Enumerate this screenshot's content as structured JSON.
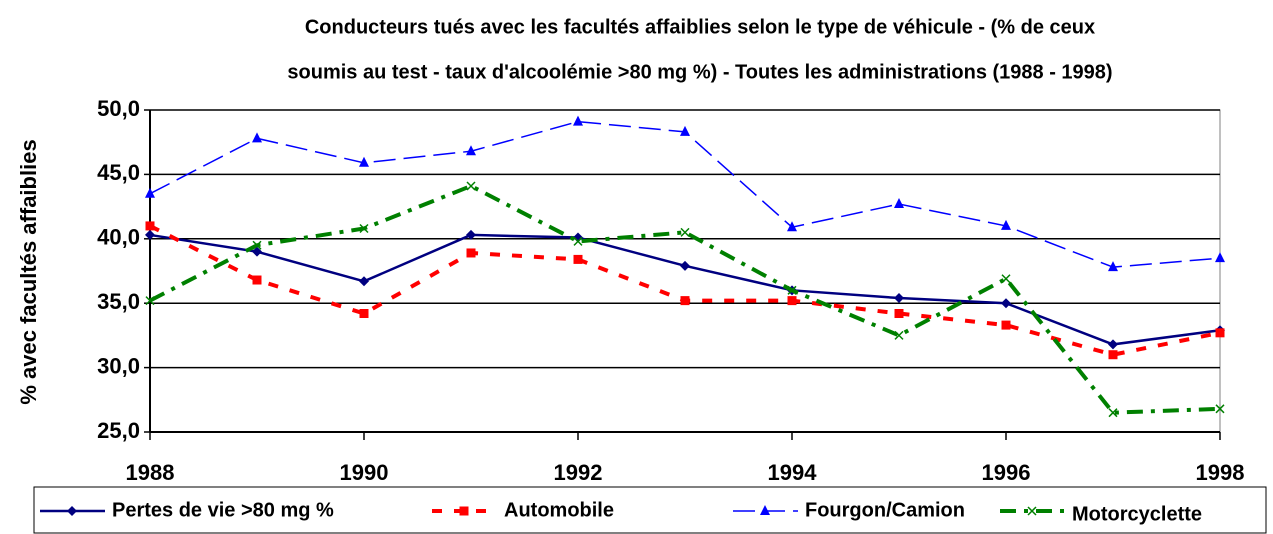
{
  "chart_data": {
    "type": "line",
    "title": [
      "Conducteurs tués avec les facultés affaiblies selon le type de véhicule - (% de ceux",
      "soumis au test - taux d'alcoolémie >80 mg %) - Toutes les administrations (1988 - 1998)"
    ],
    "y_label": "% avec facultés affaiblies",
    "x": [
      1988,
      1989,
      1990,
      1991,
      1992,
      1993,
      1994,
      1995,
      1996,
      1997,
      1998
    ],
    "xlim": [
      1988,
      1998
    ],
    "xticks": [
      1988,
      1990,
      1992,
      1994,
      1996,
      1998
    ],
    "ylim": [
      25,
      50
    ],
    "yticks": [
      {
        "value": 25,
        "label": "25,0"
      },
      {
        "value": 30,
        "label": "30,0"
      },
      {
        "value": 35,
        "label": "35,0"
      },
      {
        "value": 40,
        "label": "40,0"
      },
      {
        "value": 45,
        "label": "45,0"
      },
      {
        "value": 50,
        "label": "50,0"
      }
    ],
    "grid": true,
    "legend": "bottom",
    "series": [
      {
        "name": "Pertes de vie >80 mg %",
        "color": "#000080",
        "marker": "diamond",
        "line_style": "solid",
        "values": [
          40.3,
          39.0,
          36.7,
          40.3,
          40.1,
          37.9,
          36.0,
          35.4,
          35.0,
          31.8,
          32.9
        ]
      },
      {
        "name": "Automobile",
        "color": "#ff0000",
        "marker": "square",
        "line_style": "dashed",
        "values": [
          41.0,
          36.8,
          34.2,
          38.9,
          38.4,
          35.2,
          35.2,
          34.2,
          33.3,
          31.0,
          32.7
        ]
      },
      {
        "name": "Fourgon/Camion",
        "color": "#0000ff",
        "marker": "triangle",
        "line_style": "long-dashed",
        "values": [
          43.5,
          47.8,
          45.9,
          46.8,
          49.1,
          48.3,
          40.9,
          42.7,
          41.0,
          37.8,
          38.5
        ]
      },
      {
        "name": "Motorcyclette",
        "color": "#008000",
        "marker": "x",
        "line_style": "dash-dot",
        "values": [
          35.2,
          39.5,
          40.8,
          44.1,
          39.8,
          40.5,
          36.0,
          32.5,
          36.9,
          26.5,
          26.8
        ]
      }
    ]
  }
}
